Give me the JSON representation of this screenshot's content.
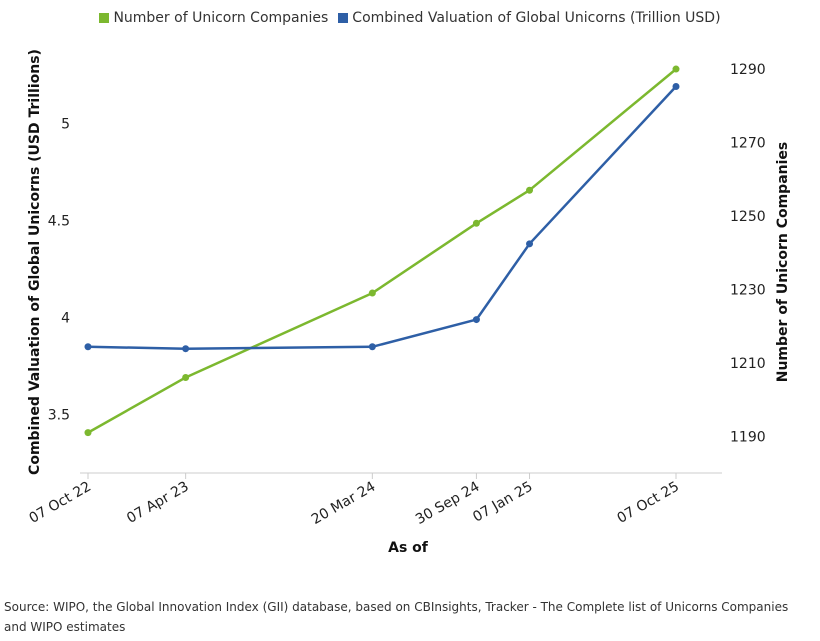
{
  "chart_data": {
    "type": "line",
    "xlabel": "As of",
    "ylabel_left": "Combined Valuation of Global Unicorns (USD Trillions)",
    "ylabel_right": "Number of Unicorn Companies",
    "x": [
      "07 Oct 22",
      "07 Apr 23",
      "20 Mar 24",
      "30 Sep 24",
      "07 Jan 25",
      "07 Oct 25"
    ],
    "x_dates": [
      "2022-10-07",
      "2023-04-07",
      "2024-03-20",
      "2024-09-30",
      "2025-01-07",
      "2025-10-07"
    ],
    "left_axis": {
      "ticks": [
        3.5,
        4,
        4.5,
        5
      ],
      "range": [
        3.2,
        5.45
      ]
    },
    "right_axis": {
      "ticks": [
        1190,
        1210,
        1230,
        1250,
        1270,
        1290
      ],
      "range": [
        1180,
        1299
      ]
    },
    "series": [
      {
        "name": "Number of Unicorn Companies",
        "axis": "right",
        "color": "#7cb82f",
        "values": [
          1191,
          1206,
          1229,
          1248,
          1257,
          1290
        ]
      },
      {
        "name": "Combined Valuation of Global Unicorns (Trillion USD)",
        "axis": "left",
        "color": "#2e5fa6",
        "values": [
          3.85,
          3.84,
          3.85,
          3.99,
          4.38,
          5.19
        ]
      }
    ],
    "grid": false,
    "legend_position": "top-center"
  },
  "source": "Source: WIPO, the Global Innovation Index (GII) database, based on CBInsights, Tracker - The Complete list of Unicorns Companies and WIPO estimates"
}
